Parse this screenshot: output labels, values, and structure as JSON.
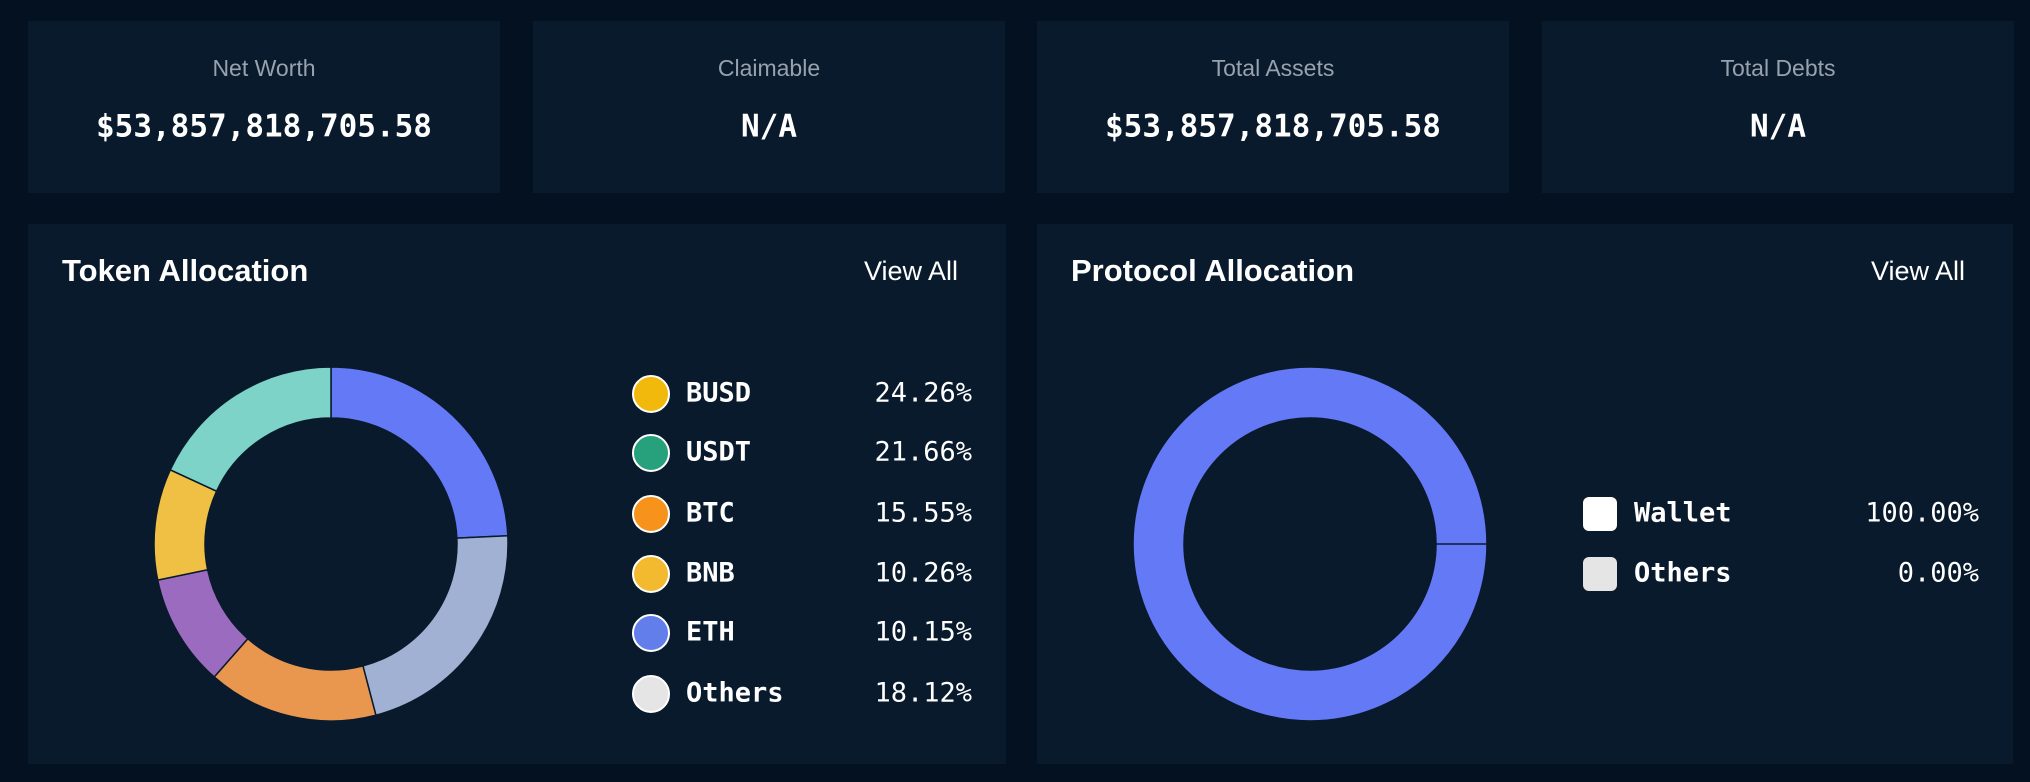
{
  "cards": [
    {
      "label": "Net Worth",
      "value": "$53,857,818,705.58"
    },
    {
      "label": "Claimable",
      "value": "N/A"
    },
    {
      "label": "Total Assets",
      "value": "$53,857,818,705.58"
    },
    {
      "label": "Total Debts",
      "value": "N/A"
    }
  ],
  "chart_data": [
    {
      "type": "pie",
      "title": "Token Allocation",
      "action": "View All",
      "categories": [
        "BUSD",
        "USDT",
        "BTC",
        "BNB",
        "ETH",
        "Others"
      ],
      "values": [
        24.26,
        21.66,
        15.55,
        10.26,
        10.15,
        18.12
      ],
      "value_labels": [
        "24.26%",
        "21.66%",
        "15.55%",
        "10.26%",
        "10.15%",
        "18.12%"
      ],
      "colors": [
        "#6479f5",
        "#a1b1d4",
        "#e9964f",
        "#9b6bbf",
        "#f0c044",
        "#7dd3c8"
      ]
    },
    {
      "type": "pie",
      "title": "Protocol Allocation",
      "action": "View All",
      "categories": [
        "Wallet",
        "Others"
      ],
      "values": [
        100.0,
        0.0
      ],
      "value_labels": [
        "100.00%",
        "0.00%"
      ],
      "colors": [
        "#6479f5",
        "#e5e5e5"
      ]
    }
  ]
}
